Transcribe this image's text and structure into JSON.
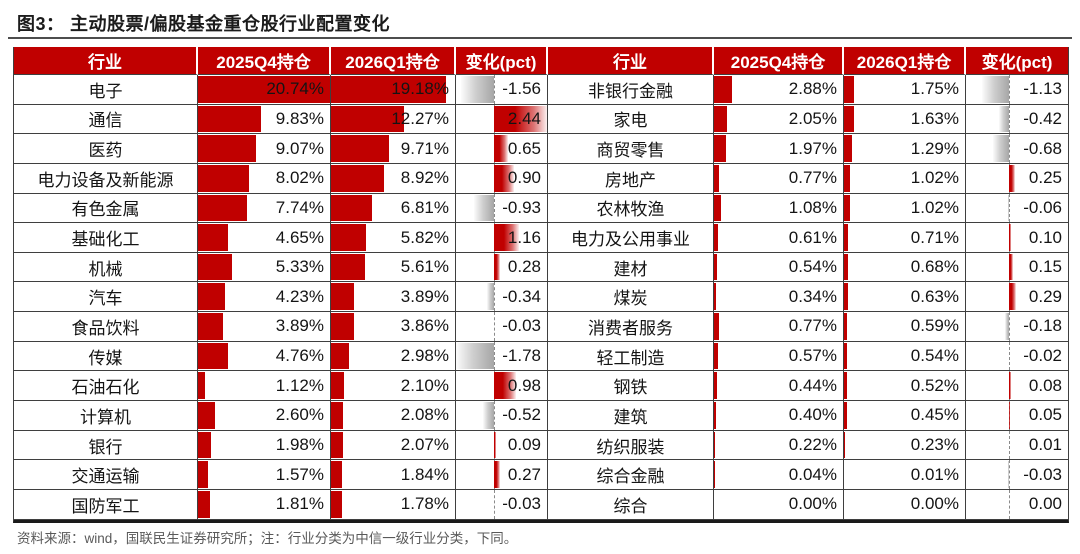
{
  "chart_data": {
    "type": "table",
    "title": "图3： 主动股票/偏股基金重仓股行业配置变化",
    "columns": [
      "行业",
      "2025Q4持仓",
      "2026Q1持仓",
      "变化(pct)"
    ],
    "layout_hints": {
      "panels_side_by_side": 2,
      "holding_bars": "red left-anchored data bars",
      "change_bars": "diverging gradient bars around dashed zero axis"
    },
    "bar_axis": {
      "holding_bar_max": 20.74,
      "change_min": -1.78,
      "change_max": 2.44
    },
    "panels": [
      {
        "rows": [
          [
            "电子",
            20.74,
            19.18,
            -1.56
          ],
          [
            "通信",
            9.83,
            12.27,
            2.44
          ],
          [
            "医药",
            9.07,
            9.71,
            0.65
          ],
          [
            "电力设备及新能源",
            8.02,
            8.92,
            0.9
          ],
          [
            "有色金属",
            7.74,
            6.81,
            -0.93
          ],
          [
            "基础化工",
            4.65,
            5.82,
            1.16
          ],
          [
            "机械",
            5.33,
            5.61,
            0.28
          ],
          [
            "汽车",
            4.23,
            3.89,
            -0.34
          ],
          [
            "食品饮料",
            3.89,
            3.86,
            -0.03
          ],
          [
            "传媒",
            4.76,
            2.98,
            -1.78
          ],
          [
            "石油石化",
            1.12,
            2.1,
            0.98
          ],
          [
            "计算机",
            2.6,
            2.08,
            -0.52
          ],
          [
            "银行",
            1.98,
            2.07,
            0.09
          ],
          [
            "交通运输",
            1.57,
            1.84,
            0.27
          ],
          [
            "国防军工",
            1.81,
            1.78,
            -0.03
          ]
        ]
      },
      {
        "rows": [
          [
            "非银行金融",
            2.88,
            1.75,
            -1.13
          ],
          [
            "家电",
            2.05,
            1.63,
            -0.42
          ],
          [
            "商贸零售",
            1.97,
            1.29,
            -0.68
          ],
          [
            "房地产",
            0.77,
            1.02,
            0.25
          ],
          [
            "农林牧渔",
            1.08,
            1.02,
            -0.06
          ],
          [
            "电力及公用事业",
            0.61,
            0.71,
            0.1
          ],
          [
            "建材",
            0.54,
            0.68,
            0.15
          ],
          [
            "煤炭",
            0.34,
            0.63,
            0.29
          ],
          [
            "消费者服务",
            0.77,
            0.59,
            -0.18
          ],
          [
            "轻工制造",
            0.57,
            0.54,
            -0.02
          ],
          [
            "钢铁",
            0.44,
            0.52,
            0.08
          ],
          [
            "建筑",
            0.4,
            0.45,
            0.05
          ],
          [
            "纺织服装",
            0.22,
            0.23,
            0.01
          ],
          [
            "综合金融",
            0.04,
            0.01,
            -0.03
          ],
          [
            "综合",
            0.0,
            0.0,
            0.0
          ]
        ]
      }
    ]
  },
  "source_note": "资料来源：wind，国联民生证券研究所；注：行业分类为中信一级行业分类，下同。",
  "colors": {
    "header_bg": "#c00000",
    "header_text": "#ffffff",
    "bar_red": "#c00000",
    "negative_bar_gray": "#a6a6a6",
    "grid_line": "#3f3f3f",
    "title_text": "#1c1c1c",
    "source_text": "#595959"
  }
}
